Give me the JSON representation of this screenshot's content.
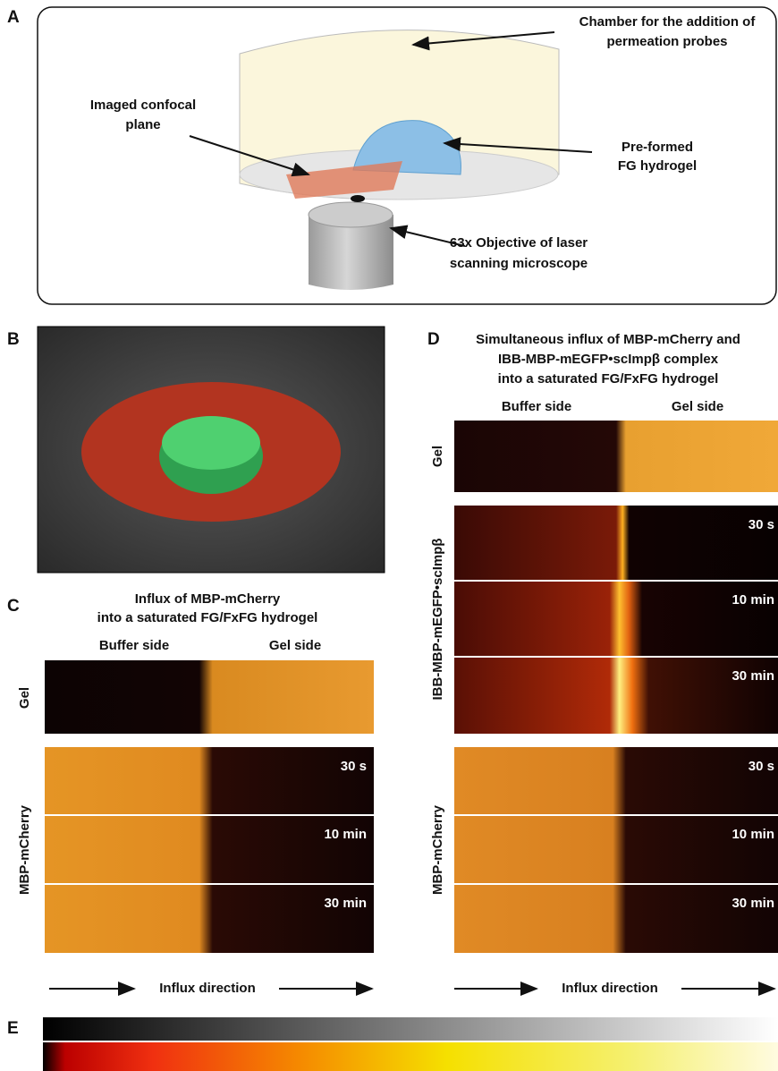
{
  "panel_a": {
    "letter": "A",
    "chamber": [
      "Chamber for the addition of",
      "permeation probes"
    ],
    "plane": [
      "Imaged confocal",
      "plane"
    ],
    "hydrogel": [
      "Pre-formed",
      "FG hydrogel"
    ],
    "objective": [
      "63x Objective of laser",
      "scanning microscope"
    ]
  },
  "panel_b": {
    "letter": "B"
  },
  "panel_c": {
    "letter": "C",
    "title": [
      "Influx of MBP-mCherry",
      "into a saturated FG/FxFG hydrogel"
    ],
    "columns": [
      "Buffer side",
      "Gel side"
    ],
    "row_labels": [
      "Gel",
      "MBP-mCherry"
    ],
    "times": [
      "30 s",
      "10 min",
      "30 min"
    ],
    "footer": "Influx direction"
  },
  "panel_d": {
    "letter": "D",
    "title": [
      "Simultaneous influx of MBP-mCherry and",
      "IBB-MBP-mEGFP•scImpβ complex",
      "into a saturated FG/FxFG hydrogel"
    ],
    "columns": [
      "Buffer side",
      "Gel side"
    ],
    "row_labels": [
      "Gel",
      "IBB-MBP-mEGFP•scImpβ",
      "MBP-mCherry"
    ],
    "times_top": [
      "30 s",
      "10 min",
      "30 min"
    ],
    "times_bottom": [
      "30 s",
      "10 min",
      "30 min"
    ],
    "footer": "Influx direction"
  },
  "panel_e": {
    "letter": "E"
  }
}
